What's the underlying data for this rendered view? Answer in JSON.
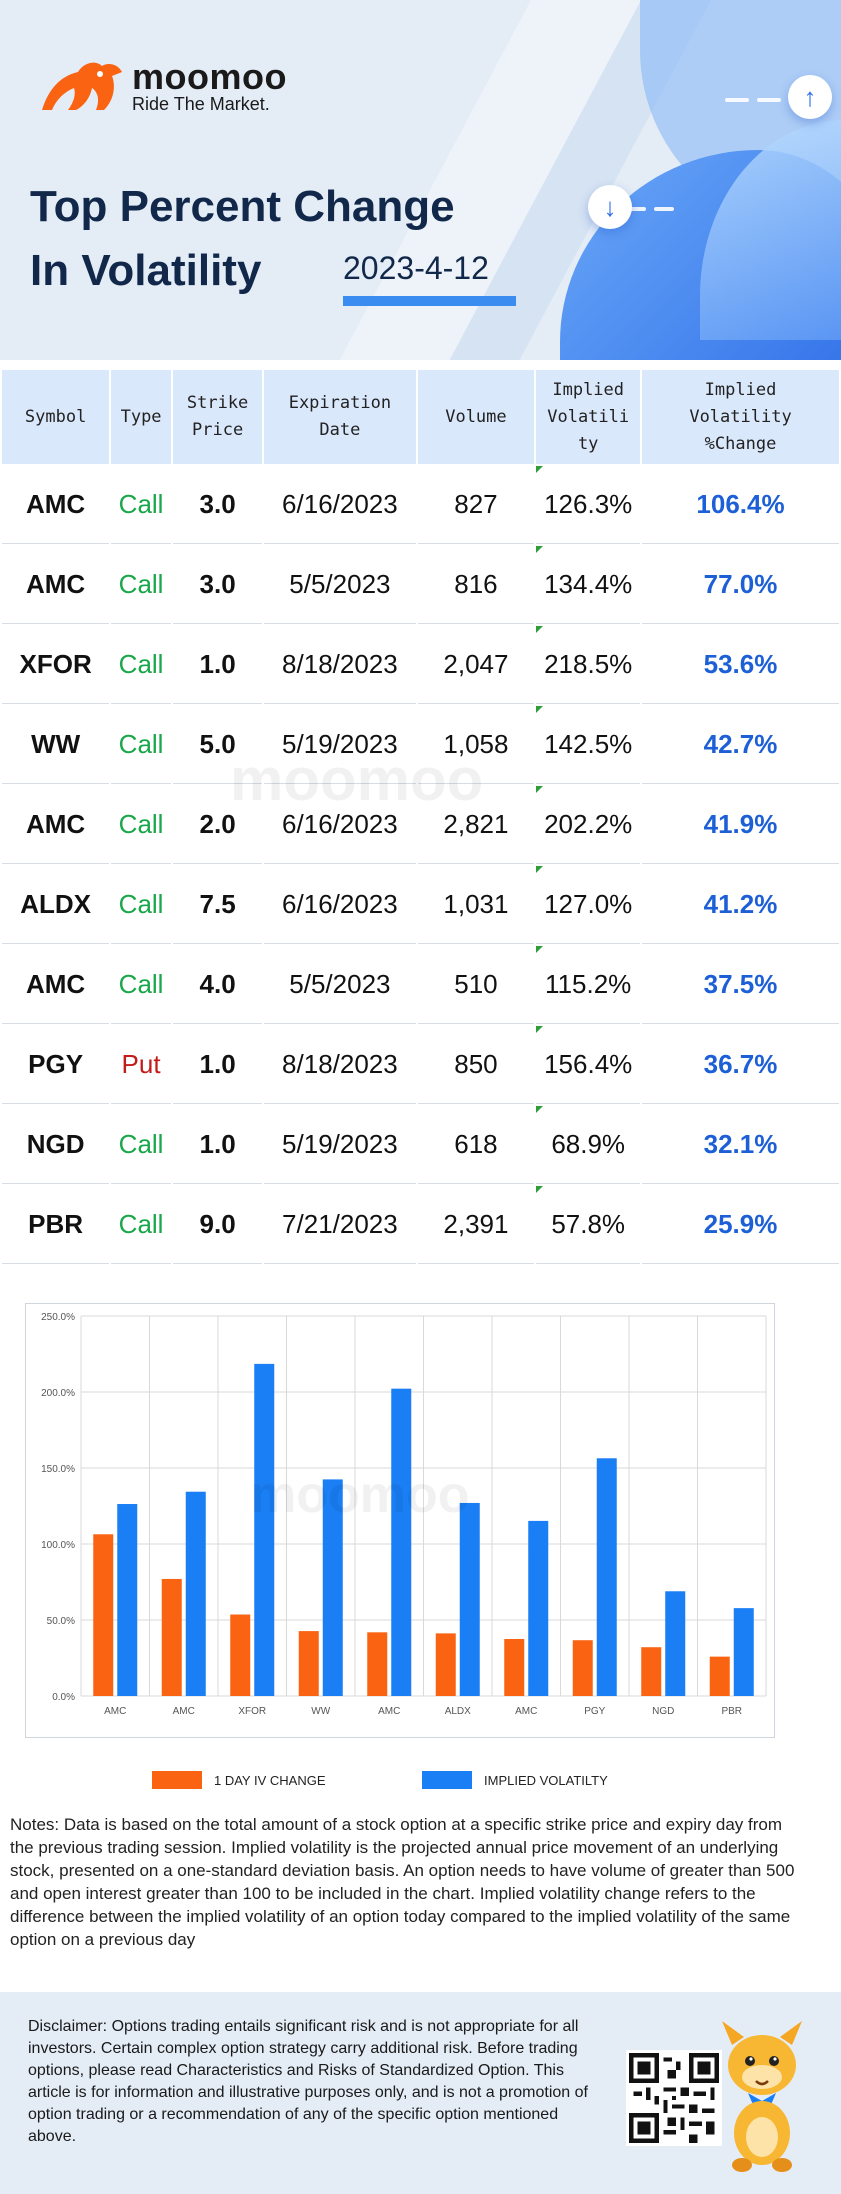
{
  "brand": {
    "name": "moomoo",
    "tagline": "Ride The Market."
  },
  "title": {
    "line1": "Top Percent Change",
    "line2": "In Volatility",
    "date": "2023-4-12"
  },
  "table": {
    "headers": {
      "symbol": "Symbol",
      "type": "Type",
      "strike": [
        "Strike",
        "Price"
      ],
      "expiration": [
        "Expiration",
        "Date"
      ],
      "volume": "Volume",
      "iv": [
        "Implied",
        "Volatili",
        "ty"
      ],
      "ivchange": [
        "Implied",
        "Volatility",
        "%Change"
      ]
    },
    "rows": [
      {
        "symbol": "AMC",
        "type": "Call",
        "strike": "3.0",
        "expiration": "6/16/2023",
        "volume": "827",
        "iv": "126.3%",
        "ivchange": "106.4%"
      },
      {
        "symbol": "AMC",
        "type": "Call",
        "strike": "3.0",
        "expiration": "5/5/2023",
        "volume": "816",
        "iv": "134.4%",
        "ivchange": "77.0%"
      },
      {
        "symbol": "XFOR",
        "type": "Call",
        "strike": "1.0",
        "expiration": "8/18/2023",
        "volume": "2,047",
        "iv": "218.5%",
        "ivchange": "53.6%"
      },
      {
        "symbol": "WW",
        "type": "Call",
        "strike": "5.0",
        "expiration": "5/19/2023",
        "volume": "1,058",
        "iv": "142.5%",
        "ivchange": "42.7%"
      },
      {
        "symbol": "AMC",
        "type": "Call",
        "strike": "2.0",
        "expiration": "6/16/2023",
        "volume": "2,821",
        "iv": "202.2%",
        "ivchange": "41.9%"
      },
      {
        "symbol": "ALDX",
        "type": "Call",
        "strike": "7.5",
        "expiration": "6/16/2023",
        "volume": "1,031",
        "iv": "127.0%",
        "ivchange": "41.2%"
      },
      {
        "symbol": "AMC",
        "type": "Call",
        "strike": "4.0",
        "expiration": "5/5/2023",
        "volume": "510",
        "iv": "115.2%",
        "ivchange": "37.5%"
      },
      {
        "symbol": "PGY",
        "type": "Put",
        "strike": "1.0",
        "expiration": "8/18/2023",
        "volume": "850",
        "iv": "156.4%",
        "ivchange": "36.7%"
      },
      {
        "symbol": "NGD",
        "type": "Call",
        "strike": "1.0",
        "expiration": "5/19/2023",
        "volume": "618",
        "iv": "68.9%",
        "ivchange": "32.1%"
      },
      {
        "symbol": "PBR",
        "type": "Call",
        "strike": "9.0",
        "expiration": "7/21/2023",
        "volume": "2,391",
        "iv": "57.8%",
        "ivchange": "25.9%"
      }
    ]
  },
  "colors": {
    "call": "#1aa64a",
    "put": "#c21b1b",
    "pct": "#1c5fd6",
    "series1": "#fa6311",
    "series2": "#1a7ef4",
    "header_bg": "#dae8fb"
  },
  "chart_data": {
    "type": "bar",
    "categories": [
      "AMC",
      "AMC",
      "XFOR",
      "WW",
      "AMC",
      "ALDX",
      "AMC",
      "PGY",
      "NGD",
      "PBR"
    ],
    "series": [
      {
        "name": "1 DAY IV CHANGE",
        "values": [
          106.4,
          77.0,
          53.6,
          42.7,
          41.9,
          41.2,
          37.5,
          36.7,
          32.1,
          25.9
        ]
      },
      {
        "name": "IMPLIED VOLATILTY",
        "values": [
          126.3,
          134.4,
          218.5,
          142.5,
          202.2,
          127.0,
          115.2,
          156.4,
          68.9,
          57.8
        ]
      }
    ],
    "yticks": [
      "0.0%",
      "50.0%",
      "100.0%",
      "150.0%",
      "200.0%",
      "250.0%"
    ],
    "ylim": [
      0,
      250
    ],
    "grid": true,
    "legend_position": "bottom"
  },
  "notes": "Notes: Data is based on the total amount of a stock option at a specific strike price and expiry day from the previous trading session. Implied volatility is the projected annual price movement of an underlying stock, presented on a one-standard deviation basis. An option needs to have volume of greater than 500 and open interest greater than 100 to be included in the chart. Implied volatility change refers to the difference between the implied volatility of an option today compared to the implied volatility of the same option on a previous day",
  "disclaimer": "Disclaimer: Options trading entails significant risk and is not appropriate for all investors. Certain complex option strategy carry additional risk. Before trading options, please read Characteristics and Risks of Standardized Option. This article is for information and illustrative purposes only, and is not a promotion of option trading or a recommendation of any of the specific option mentioned above."
}
